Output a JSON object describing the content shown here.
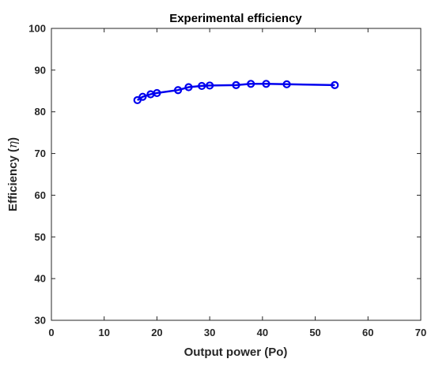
{
  "chart_data": {
    "type": "line",
    "title": "Experimental efficiency",
    "xlabel": "Output power (Po)",
    "ylabel_main": "Efficiency (",
    "ylabel_symbol": "η",
    "ylabel_close": ")",
    "xlim": [
      0,
      70
    ],
    "ylim": [
      30,
      100
    ],
    "xticks": [
      0,
      10,
      20,
      30,
      40,
      50,
      60,
      70
    ],
    "yticks": [
      30,
      40,
      50,
      60,
      70,
      80,
      90,
      100
    ],
    "grid": false,
    "legend": "none",
    "series": [
      {
        "marker": "circle",
        "color": "#0000ee",
        "x": [
          16.3,
          17.3,
          18.8,
          20.0,
          24.0,
          26.0,
          28.5,
          30.0,
          35.0,
          37.8,
          40.7,
          44.6,
          53.7
        ],
        "y": [
          82.8,
          83.6,
          84.2,
          84.5,
          85.2,
          85.9,
          86.2,
          86.3,
          86.4,
          86.7,
          86.7,
          86.6,
          86.4
        ]
      }
    ]
  }
}
